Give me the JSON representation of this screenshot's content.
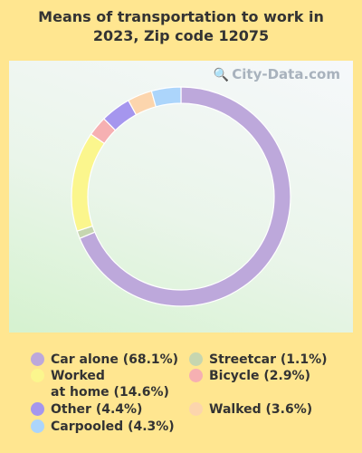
{
  "title_lines": [
    "Means of transportation to work in",
    "2023, Zip code 12075"
  ],
  "watermark": {
    "text": "City-Data.com",
    "icon": "globe-icon"
  },
  "chart_data": {
    "type": "pie",
    "donut": true,
    "start": "top",
    "direction": "clockwise",
    "slices": [
      {
        "label": "Car alone",
        "value": 68.1,
        "display": "Car alone (68.1%)",
        "color": "#bda8db"
      },
      {
        "label": "Streetcar",
        "value": 1.1,
        "display": "Streetcar (1.1%)",
        "color": "#c6d6b0"
      },
      {
        "label": "Worked at home",
        "value": 14.6,
        "display_lines": [
          "Worked",
          "at home (14.6%)"
        ],
        "color": "#fbf68d"
      },
      {
        "label": "Bicycle",
        "value": 2.9,
        "display": "Bicycle (2.9%)",
        "color": "#f6b0b2"
      },
      {
        "label": "Other",
        "value": 4.4,
        "display": "Other (4.4%)",
        "color": "#a596ee"
      },
      {
        "label": "Walked",
        "value": 3.6,
        "display": "Walked (3.6%)",
        "color": "#fcd5ad"
      },
      {
        "label": "Carpooled",
        "value": 4.3,
        "display": "Carpooled (4.3%)",
        "color": "#acd5fb"
      }
    ]
  }
}
